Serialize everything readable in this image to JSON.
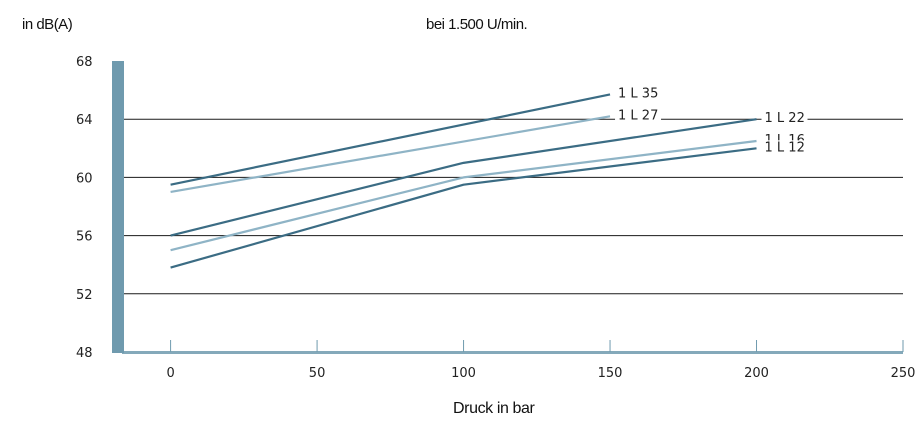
{
  "chart_data": {
    "type": "line",
    "title": "bei 1.500 U/min.",
    "ylabel": "in dB(A)",
    "xlabel": "Druck in bar",
    "xlim": [
      -20,
      250
    ],
    "ylim": [
      48,
      68
    ],
    "xticks": [
      0,
      50,
      100,
      150,
      200,
      250
    ],
    "yticks": [
      48,
      52,
      56,
      60,
      64,
      68
    ],
    "grid": "horizontal",
    "colors": {
      "dark": "#3b6c84",
      "light": "#8fb4c6",
      "grid": "#1a1a1a",
      "axis": "#6f9aae"
    },
    "series": [
      {
        "name": "1 L 35",
        "color": "dark",
        "x": [
          0,
          150
        ],
        "y": [
          59.5,
          65.7
        ]
      },
      {
        "name": "1 L 27",
        "color": "light",
        "x": [
          0,
          150
        ],
        "y": [
          59.0,
          64.2
        ]
      },
      {
        "name": "1 L 22",
        "color": "dark",
        "x": [
          0,
          100,
          200
        ],
        "y": [
          56.0,
          61.0,
          64.0
        ]
      },
      {
        "name": "1 L 16",
        "color": "light",
        "x": [
          0,
          100,
          200
        ],
        "y": [
          55.0,
          60.0,
          62.5
        ]
      },
      {
        "name": "1 L 12",
        "color": "dark",
        "x": [
          0,
          100,
          200
        ],
        "y": [
          53.8,
          59.5,
          62.0
        ]
      }
    ]
  }
}
